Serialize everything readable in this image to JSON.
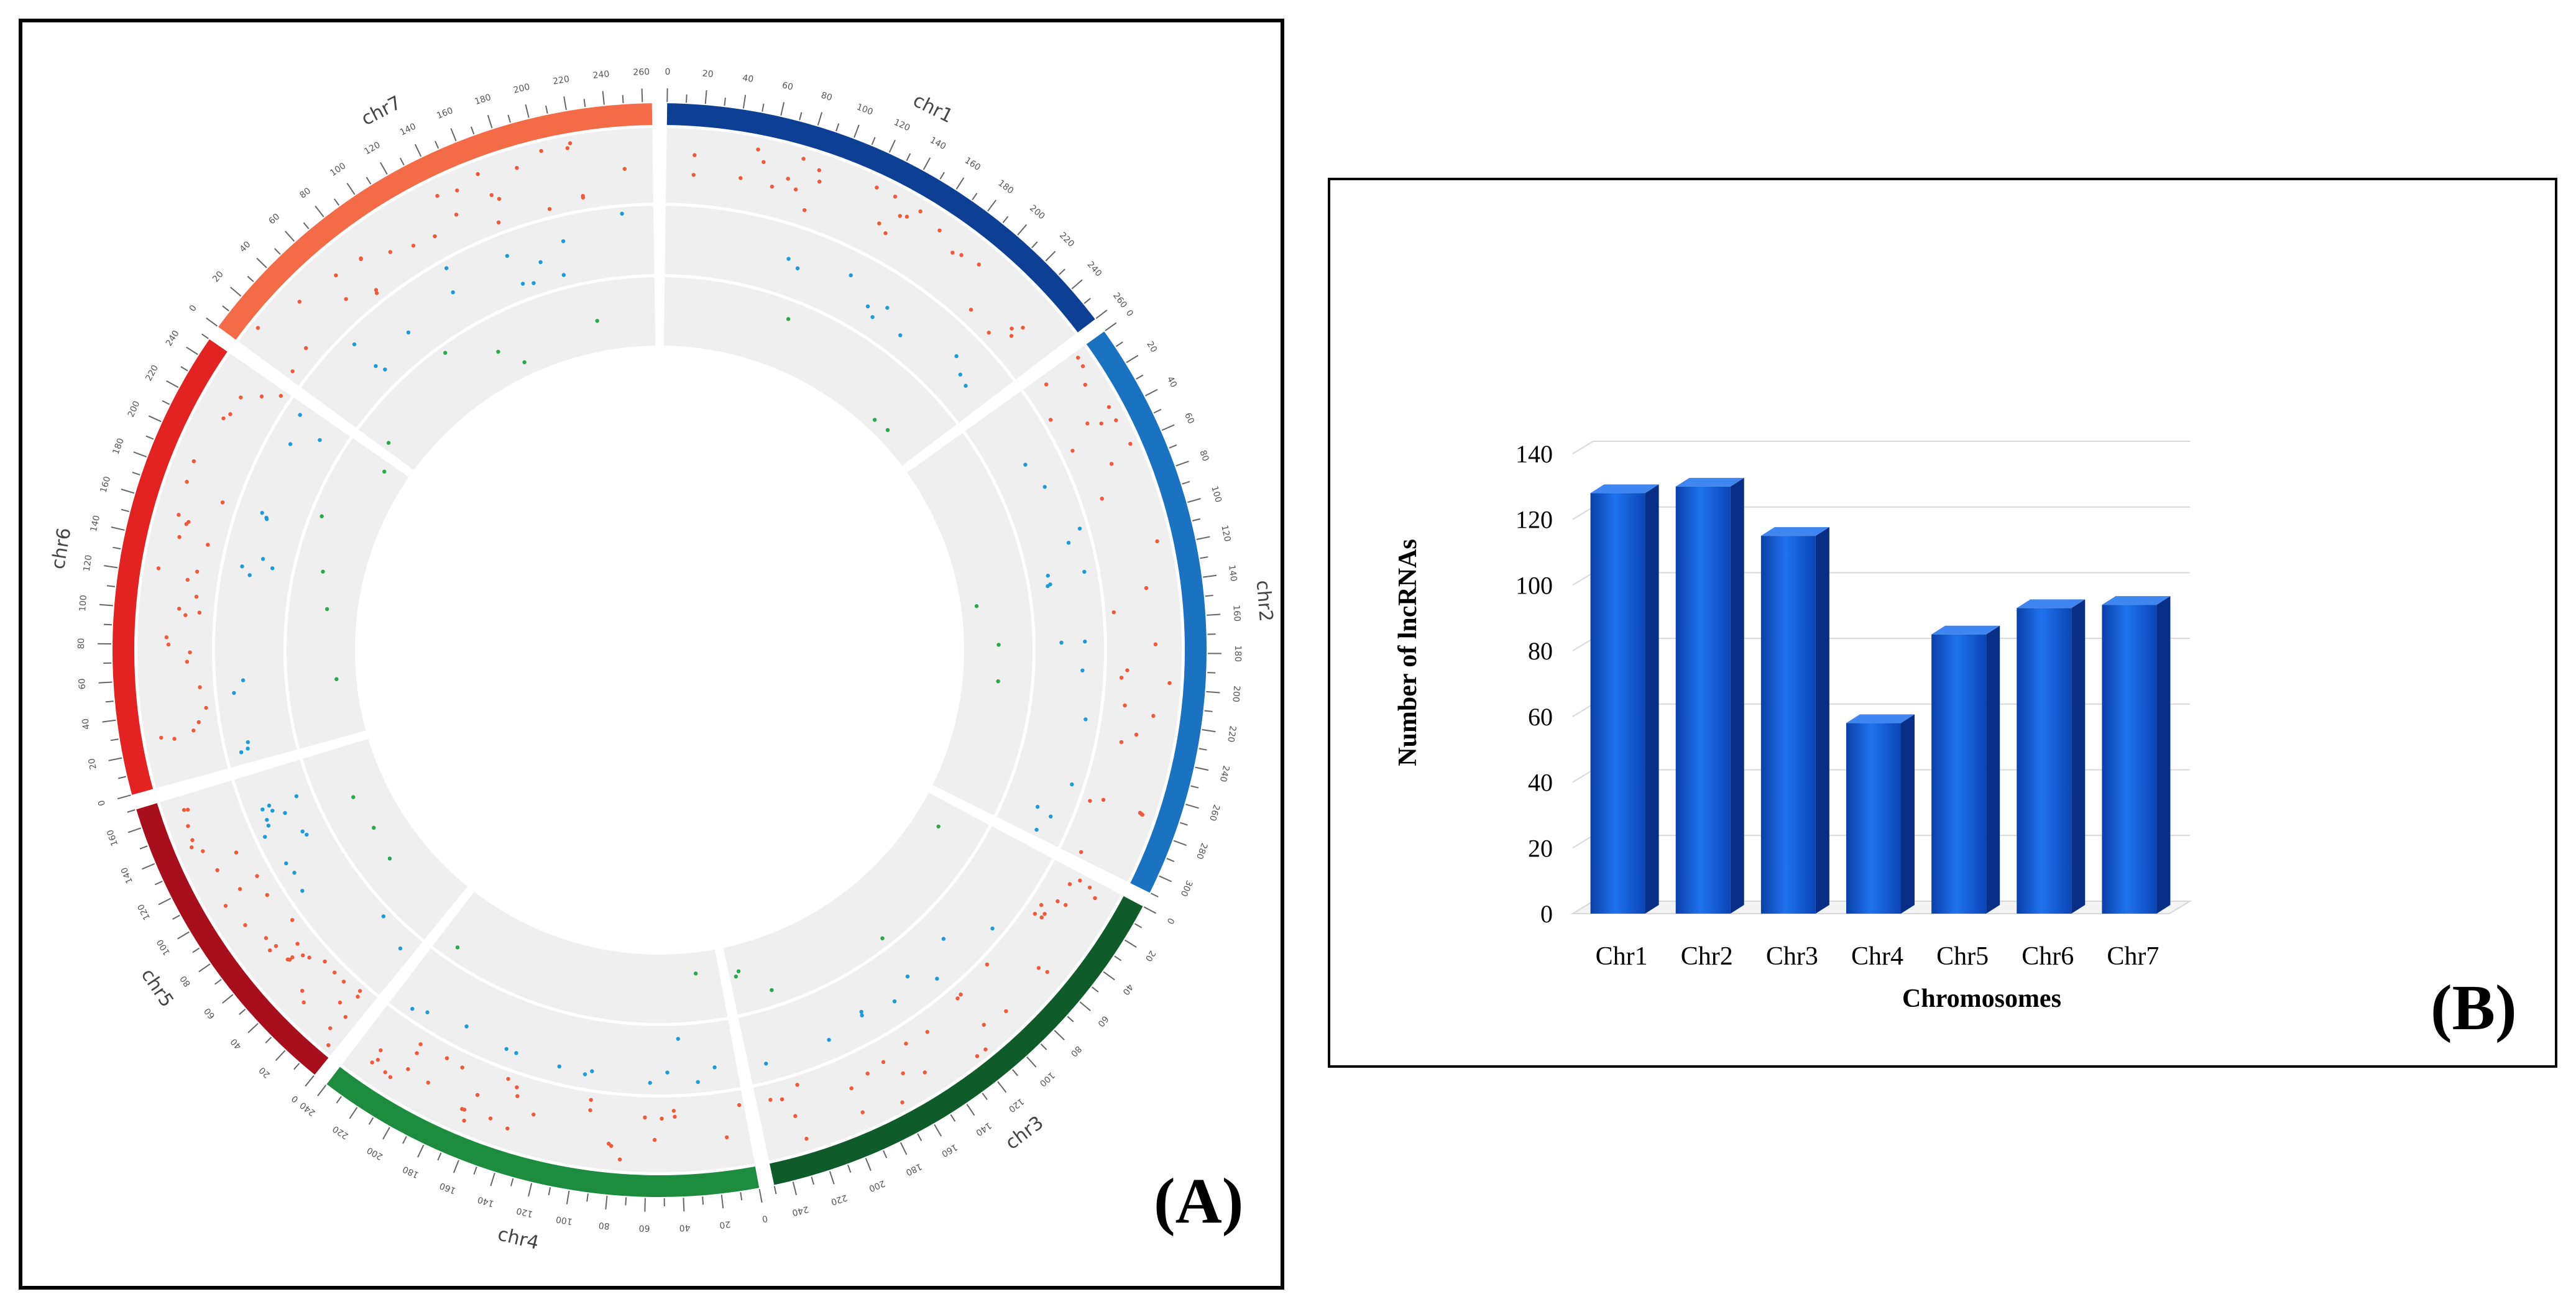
{
  "panels": {
    "a_label": "(A)",
    "b_label": "(B)"
  },
  "circos": {
    "chromosomes": [
      {
        "name": "chr1",
        "length": 260,
        "color": "#0d3f94"
      },
      {
        "name": "chr2",
        "length": 310,
        "color": "#1a72c0"
      },
      {
        "name": "chr3",
        "length": 250,
        "color": "#0f5c2a"
      },
      {
        "name": "chr4",
        "length": 240,
        "color": "#1e8c3e"
      },
      {
        "name": "chr5",
        "length": 170,
        "color": "#a80f1c"
      },
      {
        "name": "chr6",
        "length": 250,
        "color": "#e32222"
      },
      {
        "name": "chr7",
        "length": 265,
        "color": "#f46b48"
      }
    ],
    "tracks": [
      {
        "name": "outer",
        "color": "#f05a3a"
      },
      {
        "name": "middle",
        "color": "#1e9ad6"
      },
      {
        "name": "inner",
        "color": "#2aa84a"
      }
    ]
  },
  "chart_data": {
    "type": "bar",
    "title": "",
    "categories": [
      "Chr1",
      "Chr2",
      "Chr3",
      "Chr4",
      "Chr5",
      "Chr6",
      "Chr7"
    ],
    "values": [
      128,
      130,
      115,
      58,
      85,
      93,
      94
    ],
    "xlabel": "Chromosomes",
    "ylabel": "Number of lncRNAs",
    "ylim": [
      0,
      140
    ],
    "yticks": [
      0,
      20,
      40,
      60,
      80,
      100,
      120,
      140
    ],
    "grid": true,
    "bar_color": "#1760d8"
  }
}
